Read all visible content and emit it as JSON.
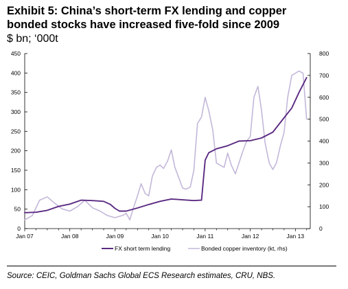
{
  "title_line1": "Exhibit 5: China’s short-term FX lending and copper",
  "title_line2": "bonded stocks have increased five-fold since 2009",
  "units": "$ bn; ‘000t",
  "source": "Source: CEIC, Goldman Sachs Global ECS Research estimates, CRU, NBS.",
  "chart_data": {
    "type": "line",
    "title": "Exhibit 5: China’s short-term FX lending and copper bonded stocks have increased five-fold since 2009",
    "x_tick_labels": [
      "Jan 07",
      "Jan 08",
      "Jan 09",
      "Jan 10",
      "Jan 11",
      "Jan 12",
      "Jan 13"
    ],
    "x_tick_years": [
      2007,
      2008,
      2009,
      2010,
      2011,
      2012,
      2013
    ],
    "xlim": [
      2007.0,
      2013.33
    ],
    "y_left": {
      "lim": [
        0,
        450
      ],
      "ticks": [
        0,
        50,
        100,
        150,
        200,
        250,
        300,
        350,
        400,
        450
      ],
      "units": "$ bn"
    },
    "y_right": {
      "lim": [
        0,
        800
      ],
      "ticks": [
        0,
        100,
        200,
        300,
        400,
        500,
        600,
        700,
        800
      ],
      "units": "’000t"
    },
    "grid": false,
    "legend_position": "bottom",
    "series": [
      {
        "name": "FX short term lending",
        "axis": "left",
        "color": "#5a2a82",
        "x": [
          2007.0,
          2007.25,
          2007.5,
          2007.75,
          2008.0,
          2008.25,
          2008.5,
          2008.75,
          2008.9,
          2009.0,
          2009.1,
          2009.25,
          2009.5,
          2009.75,
          2010.0,
          2010.25,
          2010.5,
          2010.75,
          2010.92,
          2011.0,
          2011.08,
          2011.25,
          2011.5,
          2011.75,
          2012.0,
          2012.25,
          2012.5,
          2012.75,
          2012.92,
          2013.08,
          2013.25
        ],
        "y": [
          41,
          42,
          47,
          57,
          63,
          73,
          72,
          70,
          62,
          52,
          45,
          45,
          53,
          62,
          70,
          76,
          74,
          72,
          73,
          176,
          195,
          205,
          213,
          225,
          226,
          233,
          248,
          285,
          310,
          350,
          388
        ]
      },
      {
        "name": "Bonded copper inventory (kt, rhs)",
        "axis": "right",
        "color": "#c3b7d9",
        "x": [
          2007.0,
          2007.17,
          2007.33,
          2007.5,
          2007.67,
          2007.83,
          2008.0,
          2008.17,
          2008.33,
          2008.5,
          2008.67,
          2008.83,
          2009.0,
          2009.08,
          2009.17,
          2009.25,
          2009.33,
          2009.42,
          2009.5,
          2009.58,
          2009.67,
          2009.75,
          2009.83,
          2009.92,
          2010.0,
          2010.08,
          2010.17,
          2010.25,
          2010.33,
          2010.42,
          2010.5,
          2010.58,
          2010.67,
          2010.75,
          2010.83,
          2010.92,
          2011.0,
          2011.08,
          2011.17,
          2011.25,
          2011.33,
          2011.42,
          2011.5,
          2011.58,
          2011.67,
          2011.75,
          2011.83,
          2011.92,
          2012.0,
          2012.08,
          2012.17,
          2012.25,
          2012.33,
          2012.42,
          2012.5,
          2012.58,
          2012.67,
          2012.75,
          2012.83,
          2012.92,
          2013.0,
          2013.08,
          2013.17,
          2013.25
        ],
        "y": [
          40,
          60,
          130,
          145,
          115,
          90,
          80,
          100,
          130,
          95,
          80,
          60,
          50,
          55,
          60,
          70,
          40,
          100,
          150,
          205,
          160,
          150,
          240,
          280,
          290,
          275,
          310,
          360,
          280,
          230,
          185,
          180,
          190,
          265,
          480,
          510,
          600,
          540,
          450,
          300,
          290,
          280,
          345,
          290,
          250,
          300,
          350,
          400,
          420,
          600,
          650,
          540,
          390,
          300,
          270,
          300,
          380,
          440,
          600,
          700,
          710,
          720,
          710,
          500
        ]
      }
    ]
  }
}
